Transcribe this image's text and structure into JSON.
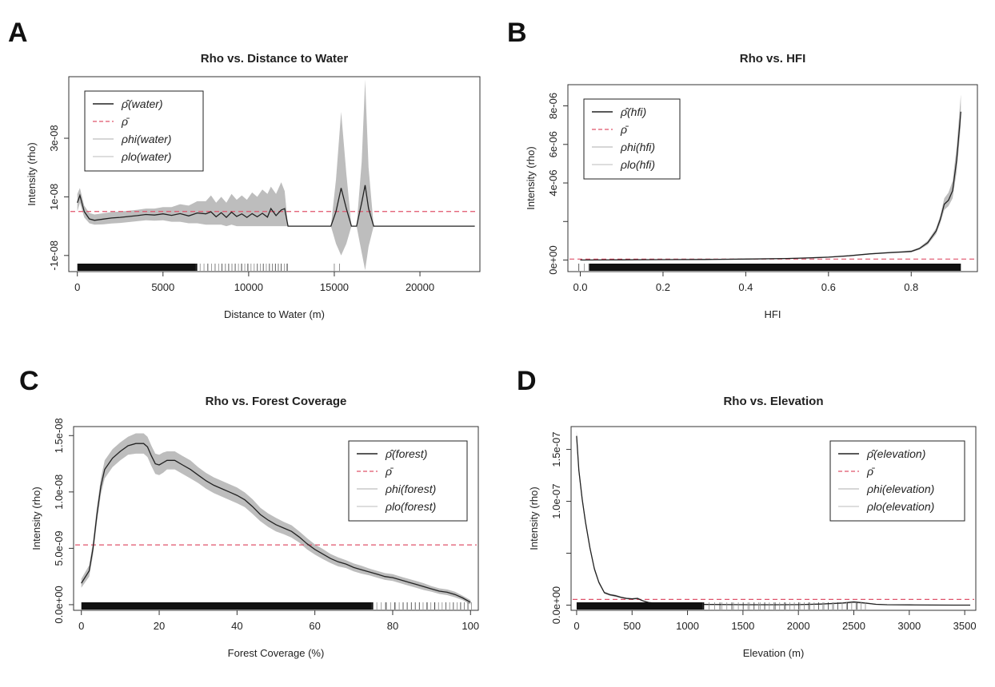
{
  "chart_data": [
    {
      "panel": "A",
      "type": "line",
      "title": "Rho vs. Distance to Water",
      "xlabel": "Distance to Water (m)",
      "ylabel": "Intensity (rho)",
      "xlim": [
        -500,
        23500
      ],
      "ylim": [
        -1.55e-08,
        5.1e-08
      ],
      "xticks": [
        0,
        5000,
        10000,
        15000,
        20000
      ],
      "xtick_labels": [
        "0",
        "5000",
        "10000",
        "15000",
        "20000"
      ],
      "yticks": [
        -1e-08,
        1e-08,
        3e-08
      ],
      "ytick_labels": [
        "-1e-08",
        "1e-08",
        "3e-08"
      ],
      "legend": {
        "position": "top-left",
        "entries": [
          "ρ̂(water)",
          "ρ̄",
          "ρhi(water)",
          "ρlo(water)"
        ]
      },
      "rho_bar": 5e-09,
      "series": [
        {
          "name": "ρ̂(water)",
          "x": [
            0,
            150,
            400,
            700,
            1000,
            1500,
            2000,
            2500,
            3000,
            3500,
            4000,
            4500,
            5000,
            5500,
            6000,
            6500,
            7000,
            7500,
            7800,
            8100,
            8400,
            8700,
            9000,
            9300,
            9600,
            9900,
            10200,
            10500,
            10800,
            11100,
            11300,
            11600,
            11900,
            12100,
            12300,
            12600,
            13000,
            14000,
            14800,
            15100,
            15400,
            15700,
            16000,
            16300,
            16600,
            16800,
            17000,
            17300,
            17600,
            18000,
            20000,
            23200
          ],
          "y": [
            8e-09,
            1.05e-08,
            5e-09,
            2.5e-09,
            2e-09,
            2.4e-09,
            2.8e-09,
            3e-09,
            3.3e-09,
            3.6e-09,
            4e-09,
            3.8e-09,
            4.2e-09,
            3.7e-09,
            4.3e-09,
            3.5e-09,
            4.5e-09,
            4.2e-09,
            4.9e-09,
            3.2e-09,
            4.6e-09,
            3e-09,
            4.8e-09,
            3.3e-09,
            4.2e-09,
            3e-09,
            4.3e-09,
            3.2e-09,
            4.4e-09,
            3.1e-09,
            6e-09,
            3.6e-09,
            5.5e-09,
            6e-09,
            0,
            0,
            0,
            0,
            0,
            5e-09,
            1.3e-08,
            6e-09,
            0,
            0,
            8e-09,
            1.4e-08,
            6e-09,
            0,
            0,
            0,
            0,
            0
          ],
          "band_hi": [
            1.1e-08,
            1.3e-08,
            7e-09,
            4.5e-09,
            4e-09,
            4.4e-09,
            4.8e-09,
            5e-09,
            5.3e-09,
            5.6e-09,
            6e-09,
            6e-09,
            6.5e-09,
            6.5e-09,
            7.5e-09,
            7e-09,
            8.5e-09,
            8.5e-09,
            1.05e-08,
            8e-09,
            1e-08,
            8e-09,
            1.1e-08,
            9e-09,
            1.05e-08,
            9e-09,
            1.15e-08,
            1e-08,
            1.25e-08,
            1.1e-08,
            1.35e-08,
            1.1e-08,
            1.5e-08,
            1.2e-08,
            0,
            0,
            0,
            0,
            0,
            1.6e-08,
            3.9e-08,
            1.8e-08,
            0,
            0,
            2.2e-08,
            5e-08,
            2e-08,
            0,
            0,
            0,
            0,
            0
          ],
          "band_lo": [
            5e-09,
            8e-09,
            3e-09,
            1e-09,
            5e-10,
            6e-10,
            9e-10,
            1.1e-09,
            1.4e-09,
            1.7e-09,
            2e-09,
            1.9e-09,
            2e-09,
            1.5e-09,
            1.5e-09,
            1e-09,
            1e-09,
            5e-10,
            5e-10,
            5e-10,
            5e-10,
            0,
            5e-10,
            0,
            0,
            0,
            0,
            0,
            0,
            0,
            0,
            0,
            0,
            0,
            0,
            0,
            0,
            0,
            0,
            -6e-09,
            -1e-08,
            -6e-09,
            0,
            0,
            -9e-09,
            -1.5e-08,
            -7e-09,
            0,
            0,
            0,
            0,
            0
          ]
        }
      ],
      "rug_dense": [
        0,
        7000
      ],
      "rug_sparse": [
        7000,
        12300,
        40
      ],
      "rug_extra": [
        15000,
        15300
      ]
    },
    {
      "panel": "B",
      "type": "line",
      "title": "Rho vs. HFI",
      "xlabel": "HFI",
      "ylabel": "Intensity (rho)",
      "xlim": [
        -0.03,
        0.96
      ],
      "ylim": [
        -6e-07,
        9.1e-06
      ],
      "xticks": [
        0,
        0.2,
        0.4,
        0.6,
        0.8
      ],
      "xtick_labels": [
        "0.0",
        "0.2",
        "0.4",
        "0.6",
        "0.8"
      ],
      "yticks": [
        0,
        2e-06,
        4e-06,
        6e-06,
        8e-06
      ],
      "ytick_labels": [
        "0e+00",
        "",
        "4e-06",
        "6e-06",
        "8e-06"
      ],
      "legend": {
        "position": "top-left",
        "entries": [
          "ρ̂(hfi)",
          "ρ̄",
          "ρhi(hfi)",
          "ρlo(hfi)"
        ]
      },
      "rho_bar": 5e-08,
      "series": [
        {
          "name": "ρ̂(hfi)",
          "x": [
            0,
            0.1,
            0.2,
            0.3,
            0.4,
            0.5,
            0.55,
            0.6,
            0.65,
            0.7,
            0.75,
            0.78,
            0.8,
            0.82,
            0.84,
            0.86,
            0.87,
            0.88,
            0.89,
            0.9,
            0.91,
            0.92
          ],
          "y": [
            0,
            1e-08,
            2e-08,
            3e-08,
            5e-08,
            8e-08,
            1.1e-07,
            1.5e-07,
            2.2e-07,
            3.2e-07,
            3.9e-07,
            4.2e-07,
            4.5e-07,
            6e-07,
            9e-07,
            1.5e-06,
            2.1e-06,
            2.9e-06,
            3.1e-06,
            3.6e-06,
            5.2e-06,
            7.7e-06
          ],
          "band_hi": [
            2e-08,
            3e-08,
            4e-08,
            5e-08,
            7e-08,
            1.1e-07,
            1.4e-07,
            1.8e-07,
            2.5e-07,
            3.5e-07,
            4.3e-07,
            4.6e-07,
            5e-07,
            6.6e-07,
            1e-06,
            1.65e-06,
            2.3e-06,
            3.2e-06,
            3.5e-06,
            4.1e-06,
            5.9e-06,
            8.6e-06
          ],
          "band_lo": [
            0,
            0,
            5e-09,
            1.5e-08,
            3e-08,
            5e-08,
            8e-08,
            1.2e-07,
            1.9e-07,
            2.9e-07,
            3.5e-07,
            3.8e-07,
            4e-07,
            5.4e-07,
            8e-07,
            1.35e-06,
            1.9e-06,
            2.6e-06,
            2.8e-06,
            3.2e-06,
            4.6e-06,
            7e-06
          ]
        }
      ],
      "rug_dense": [
        0.02,
        0.92
      ],
      "rug_sparse": [
        0,
        0.02,
        3
      ],
      "rug_extra": []
    },
    {
      "panel": "C",
      "type": "line",
      "title": "Rho vs. Forest Coverage",
      "xlabel": "Forest Coverage (%)",
      "ylabel": "Intensity (rho)",
      "xlim": [
        -2,
        102
      ],
      "ylim": [
        -5e-10,
        1.58e-08
      ],
      "xticks": [
        0,
        20,
        40,
        60,
        80,
        100
      ],
      "xtick_labels": [
        "0",
        "20",
        "40",
        "60",
        "80",
        "100"
      ],
      "yticks": [
        0,
        5e-09,
        1e-08,
        1.5e-08
      ],
      "ytick_labels": [
        "0.0e+00",
        "5.0e-09",
        "1.0e-08",
        "1.5e-08"
      ],
      "legend": {
        "position": "top-right",
        "entries": [
          "ρ̂(forest)",
          "ρ̄",
          "ρhi(forest)",
          "ρlo(forest)"
        ]
      },
      "rho_bar": 5.3e-09,
      "series": [
        {
          "name": "ρ̂(forest)",
          "x": [
            0,
            2,
            3,
            4,
            5,
            6,
            8,
            10,
            12,
            14,
            16,
            17,
            18,
            19,
            20,
            21,
            22,
            24,
            26,
            28,
            30,
            32,
            34,
            36,
            38,
            40,
            42,
            44,
            46,
            48,
            50,
            52,
            54,
            56,
            58,
            60,
            62,
            64,
            66,
            68,
            70,
            72,
            74,
            76,
            78,
            80,
            82,
            84,
            86,
            88,
            90,
            92,
            94,
            96,
            98,
            100
          ],
          "y": [
            1.9e-09,
            3e-09,
            5e-09,
            8e-09,
            1.05e-08,
            1.2e-08,
            1.3e-08,
            1.36e-08,
            1.41e-08,
            1.43e-08,
            1.43e-08,
            1.4e-08,
            1.32e-08,
            1.25e-08,
            1.24e-08,
            1.26e-08,
            1.28e-08,
            1.28e-08,
            1.24e-08,
            1.2e-08,
            1.15e-08,
            1.1e-08,
            1.06e-08,
            1.03e-08,
            1e-08,
            9.7e-09,
            9.3e-09,
            8.7e-09,
            8e-09,
            7.5e-09,
            7.1e-09,
            6.8e-09,
            6.5e-09,
            6e-09,
            5.4e-09,
            4.9e-09,
            4.5e-09,
            4.1e-09,
            3.8e-09,
            3.6e-09,
            3.3e-09,
            3.1e-09,
            2.9e-09,
            2.7e-09,
            2.5e-09,
            2.4e-09,
            2.2e-09,
            2e-09,
            1.8e-09,
            1.6e-09,
            1.4e-09,
            1.2e-09,
            1.1e-09,
            9e-10,
            6e-10,
            2e-10
          ],
          "band_hi": [
            2.3e-09,
            3.5e-09,
            5.6e-09,
            8.7e-09,
            1.12e-08,
            1.28e-08,
            1.38e-08,
            1.44e-08,
            1.49e-08,
            1.52e-08,
            1.52e-08,
            1.49e-08,
            1.41e-08,
            1.34e-08,
            1.33e-08,
            1.35e-08,
            1.36e-08,
            1.36e-08,
            1.32e-08,
            1.28e-08,
            1.22e-08,
            1.17e-08,
            1.13e-08,
            1.1e-08,
            1.07e-08,
            1.04e-08,
            9.95e-09,
            9.35e-09,
            8.6e-09,
            8.1e-09,
            7.7e-09,
            7.35e-09,
            7.05e-09,
            6.5e-09,
            5.9e-09,
            5.35e-09,
            4.95e-09,
            4.5e-09,
            4.2e-09,
            3.95e-09,
            3.65e-09,
            3.45e-09,
            3.2e-09,
            3e-09,
            2.8e-09,
            2.7e-09,
            2.5e-09,
            2.3e-09,
            2.1e-09,
            1.9e-09,
            1.65e-09,
            1.45e-09,
            1.35e-09,
            1.15e-09,
            8e-10,
            4e-10
          ],
          "band_lo": [
            1.5e-09,
            2.5e-09,
            4.4e-09,
            7.3e-09,
            9.8e-09,
            1.12e-08,
            1.22e-08,
            1.28e-08,
            1.33e-08,
            1.34e-08,
            1.34e-08,
            1.31e-08,
            1.23e-08,
            1.16e-08,
            1.15e-08,
            1.17e-08,
            1.2e-08,
            1.2e-08,
            1.16e-08,
            1.12e-08,
            1.08e-08,
            1.03e-08,
            9.9e-09,
            9.6e-09,
            9.3e-09,
            9e-09,
            8.65e-09,
            8.05e-09,
            7.4e-09,
            6.9e-09,
            6.5e-09,
            6.25e-09,
            5.95e-09,
            5.5e-09,
            4.9e-09,
            4.45e-09,
            4.05e-09,
            3.7e-09,
            3.4e-09,
            3.25e-09,
            2.95e-09,
            2.75e-09,
            2.6e-09,
            2.4e-09,
            2.2e-09,
            2.1e-09,
            1.9e-09,
            1.7e-09,
            1.5e-09,
            1.3e-09,
            1.15e-09,
            9.5e-10,
            8.5e-10,
            6.5e-10,
            4e-10,
            0
          ]
        }
      ],
      "rug_dense": [
        0,
        75
      ],
      "rug_sparse": [
        75,
        100,
        35
      ],
      "rug_extra": []
    },
    {
      "panel": "D",
      "type": "line",
      "title": "Rho vs. Elevation",
      "xlabel": "Elevation (m)",
      "ylabel": "Intensity (rho)",
      "xlim": [
        -50,
        3600
      ],
      "ylim": [
        -5e-09,
        1.72e-07
      ],
      "xticks": [
        0,
        500,
        1000,
        1500,
        2000,
        2500,
        3000,
        3500
      ],
      "xtick_labels": [
        "0",
        "500",
        "1000",
        "1500",
        "2000",
        "2500",
        "3000",
        "3500"
      ],
      "yticks": [
        0,
        5e-08,
        1e-07,
        1.5e-07
      ],
      "ytick_labels": [
        "0.0e+00",
        "",
        "1.0e-07",
        "1.5e-07"
      ],
      "legend": {
        "position": "top-right",
        "entries": [
          "ρ̂(elevation)",
          "ρ̄",
          "ρhi(elevation)",
          "ρlo(elevation)"
        ]
      },
      "rho_bar": 5.5e-09,
      "series": [
        {
          "name": "ρ̂(elevation)",
          "x": [
            0,
            20,
            50,
            80,
            120,
            160,
            200,
            250,
            300,
            350,
            400,
            450,
            500,
            550,
            600,
            650,
            700,
            800,
            900,
            1000,
            1200,
            1400,
            1600,
            1800,
            2000,
            2200,
            2400,
            2500,
            2600,
            2700,
            2800,
            3000,
            3200,
            3400,
            3550
          ],
          "y": [
            1.63e-07,
            1.3e-07,
            1.02e-07,
            8e-08,
            5.5e-08,
            3.5e-08,
            2.2e-08,
            1.2e-08,
            1e-08,
            9e-09,
            7.5e-09,
            6.5e-09,
            6e-09,
            6.5e-09,
            4e-09,
            2.5e-09,
            2e-09,
            1.5e-09,
            1e-09,
            8e-10,
            6e-10,
            5e-10,
            4e-10,
            4e-10,
            5e-10,
            1e-09,
            2e-09,
            3e-09,
            2e-09,
            8e-10,
            4e-10,
            2e-10,
            1e-10,
            0,
            0
          ],
          "band_hi": [
            1.68e-07,
            1.34e-07,
            1.05e-07,
            8.3e-08,
            5.7e-08,
            3.7e-08,
            2.35e-08,
            1.3e-08,
            1.1e-08,
            1e-08,
            8.3e-09,
            7.3e-09,
            6.8e-09,
            7.3e-09,
            4.6e-09,
            3e-09,
            2.4e-09,
            1.9e-09,
            1.3e-09,
            1.1e-09,
            8e-10,
            7e-10,
            6e-10,
            6e-10,
            8e-10,
            1.4e-09,
            2.8e-09,
            4e-09,
            2.8e-09,
            1.2e-09,
            6e-10,
            3e-10,
            2e-10,
            1e-10,
            0
          ],
          "band_lo": [
            1.58e-07,
            1.26e-07,
            9.9e-08,
            7.7e-08,
            5.3e-08,
            3.3e-08,
            2.05e-08,
            1.1e-08,
            9e-09,
            8e-09,
            6.7e-09,
            5.7e-09,
            5.2e-09,
            5.7e-09,
            3.4e-09,
            2e-09,
            1.6e-09,
            1.1e-09,
            7e-10,
            5e-10,
            4e-10,
            3e-10,
            2e-10,
            2e-10,
            2e-10,
            6e-10,
            1.2e-09,
            2e-09,
            1.2e-09,
            4e-10,
            2e-10,
            1e-10,
            0,
            0,
            0
          ]
        }
      ],
      "rug_dense": [
        0,
        1150
      ],
      "rug_sparse": [
        1150,
        2600,
        45
      ],
      "rug_extra": []
    }
  ],
  "panels": [
    {
      "letter": "A"
    },
    {
      "letter": "B"
    },
    {
      "letter": "C"
    },
    {
      "letter": "D"
    }
  ],
  "colors": {
    "line": "#222222",
    "band": "#bdbdbd",
    "rho_bar": "#df536b",
    "rho_hi": "#c8c8c8",
    "rho_lo": "#d2d2d2",
    "axis": "#333333"
  }
}
